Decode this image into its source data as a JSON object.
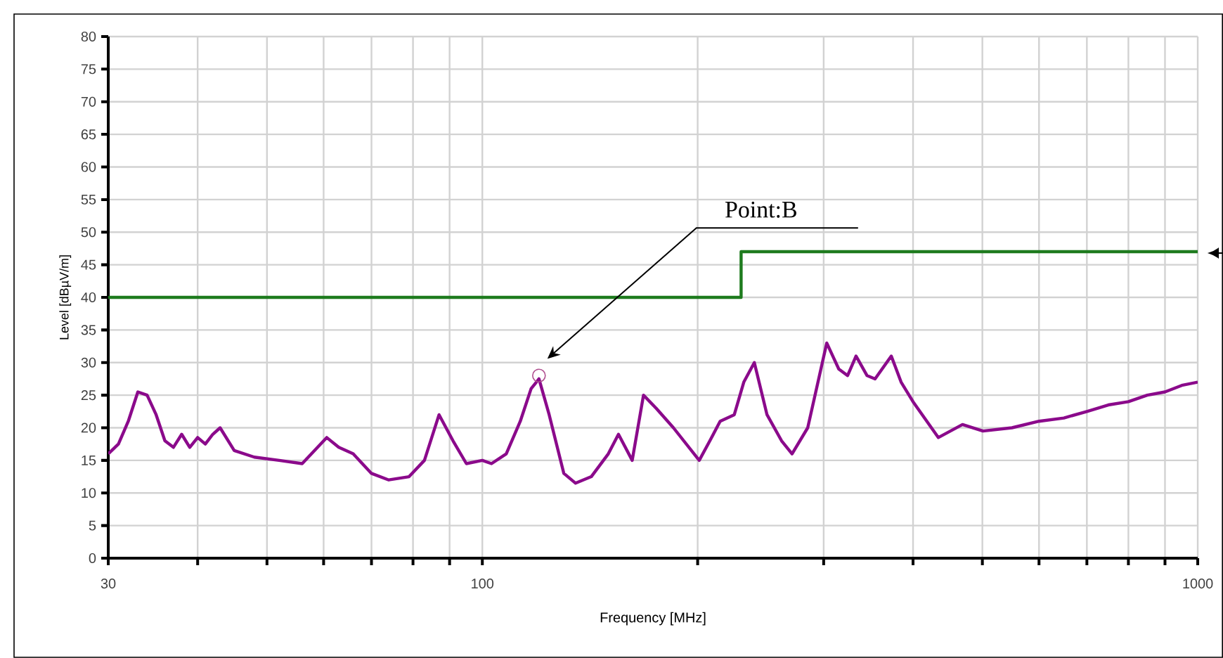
{
  "chart_data": {
    "type": "line",
    "xlabel": "Frequency [MHz]",
    "ylabel": "Level [dBµV/m]",
    "annotations": [
      "Point:B"
    ],
    "log": "x",
    "xlim": [
      30,
      1000
    ],
    "ylim": [
      0,
      80
    ],
    "xticks": [
      30,
      {
        "value": 40,
        "label": null
      },
      {
        "value": 50,
        "label": null
      },
      {
        "value": 60,
        "label": null
      },
      {
        "value": 70,
        "label": null
      },
      {
        "value": 80,
        "label": null
      },
      {
        "value": 90,
        "label": null
      },
      100,
      {
        "value": 200,
        "label": null
      },
      {
        "value": 300,
        "label": null
      },
      {
        "value": 400,
        "label": null
      },
      {
        "value": 500,
        "label": null
      },
      {
        "value": 600,
        "label": null
      },
      {
        "value": 700,
        "label": null
      },
      {
        "value": 800,
        "label": null
      },
      {
        "value": 900,
        "label": null
      },
      1000
    ],
    "yticks": [
      0,
      5,
      10,
      15,
      20,
      25,
      30,
      35,
      40,
      45,
      50,
      55,
      60,
      65,
      70,
      75,
      80
    ],
    "grid": true,
    "series": [
      {
        "color": "#8b0a8b",
        "x": [
          30,
          31,
          32,
          33,
          34,
          35,
          36,
          37,
          38,
          39,
          40,
          41,
          42,
          43,
          45,
          48,
          52,
          56,
          60.6,
          63,
          66,
          70,
          74,
          79,
          83,
          87,
          91,
          95,
          100,
          103,
          108,
          113,
          117,
          120,
          124,
          130,
          135,
          142,
          150,
          155,
          162,
          168,
          175,
          185,
          201,
          208,
          215,
          225,
          232,
          240,
          250,
          262,
          271,
          285,
          303,
          315,
          324,
          333,
          345,
          354,
          373,
          385,
          400,
          434,
          469,
          501,
          550,
          600,
          650,
          700,
          750,
          800,
          850,
          900,
          950,
          1000
        ],
        "values": [
          16,
          17.5,
          21,
          25.5,
          25,
          22,
          18,
          17,
          19,
          17,
          18.5,
          17.5,
          19,
          20,
          16.5,
          15.5,
          15,
          14.5,
          18.5,
          17,
          16,
          13,
          12,
          12.5,
          15,
          22,
          18,
          14.5,
          15,
          14.5,
          16,
          21,
          26,
          27.5,
          22,
          13,
          11.5,
          12.5,
          16,
          19,
          15,
          25,
          23,
          20,
          15,
          18,
          21,
          22,
          27,
          30,
          22,
          18,
          16,
          20,
          33,
          29,
          28,
          31,
          28,
          27.5,
          31,
          27,
          24,
          18.5,
          20.5,
          19.5,
          20,
          21,
          21.5,
          22.5,
          23.5,
          24,
          25,
          25.5,
          26.5,
          27
        ]
      },
      {
        "color": "#1e7b1e",
        "x": [
          30,
          230,
          230,
          1000
        ],
        "values": [
          40,
          40,
          47,
          47
        ]
      },
      {
        "type": "scatter",
        "marker": "circle",
        "color": "#b05090",
        "x": [
          120
        ],
        "values": [
          28
        ]
      }
    ]
  }
}
